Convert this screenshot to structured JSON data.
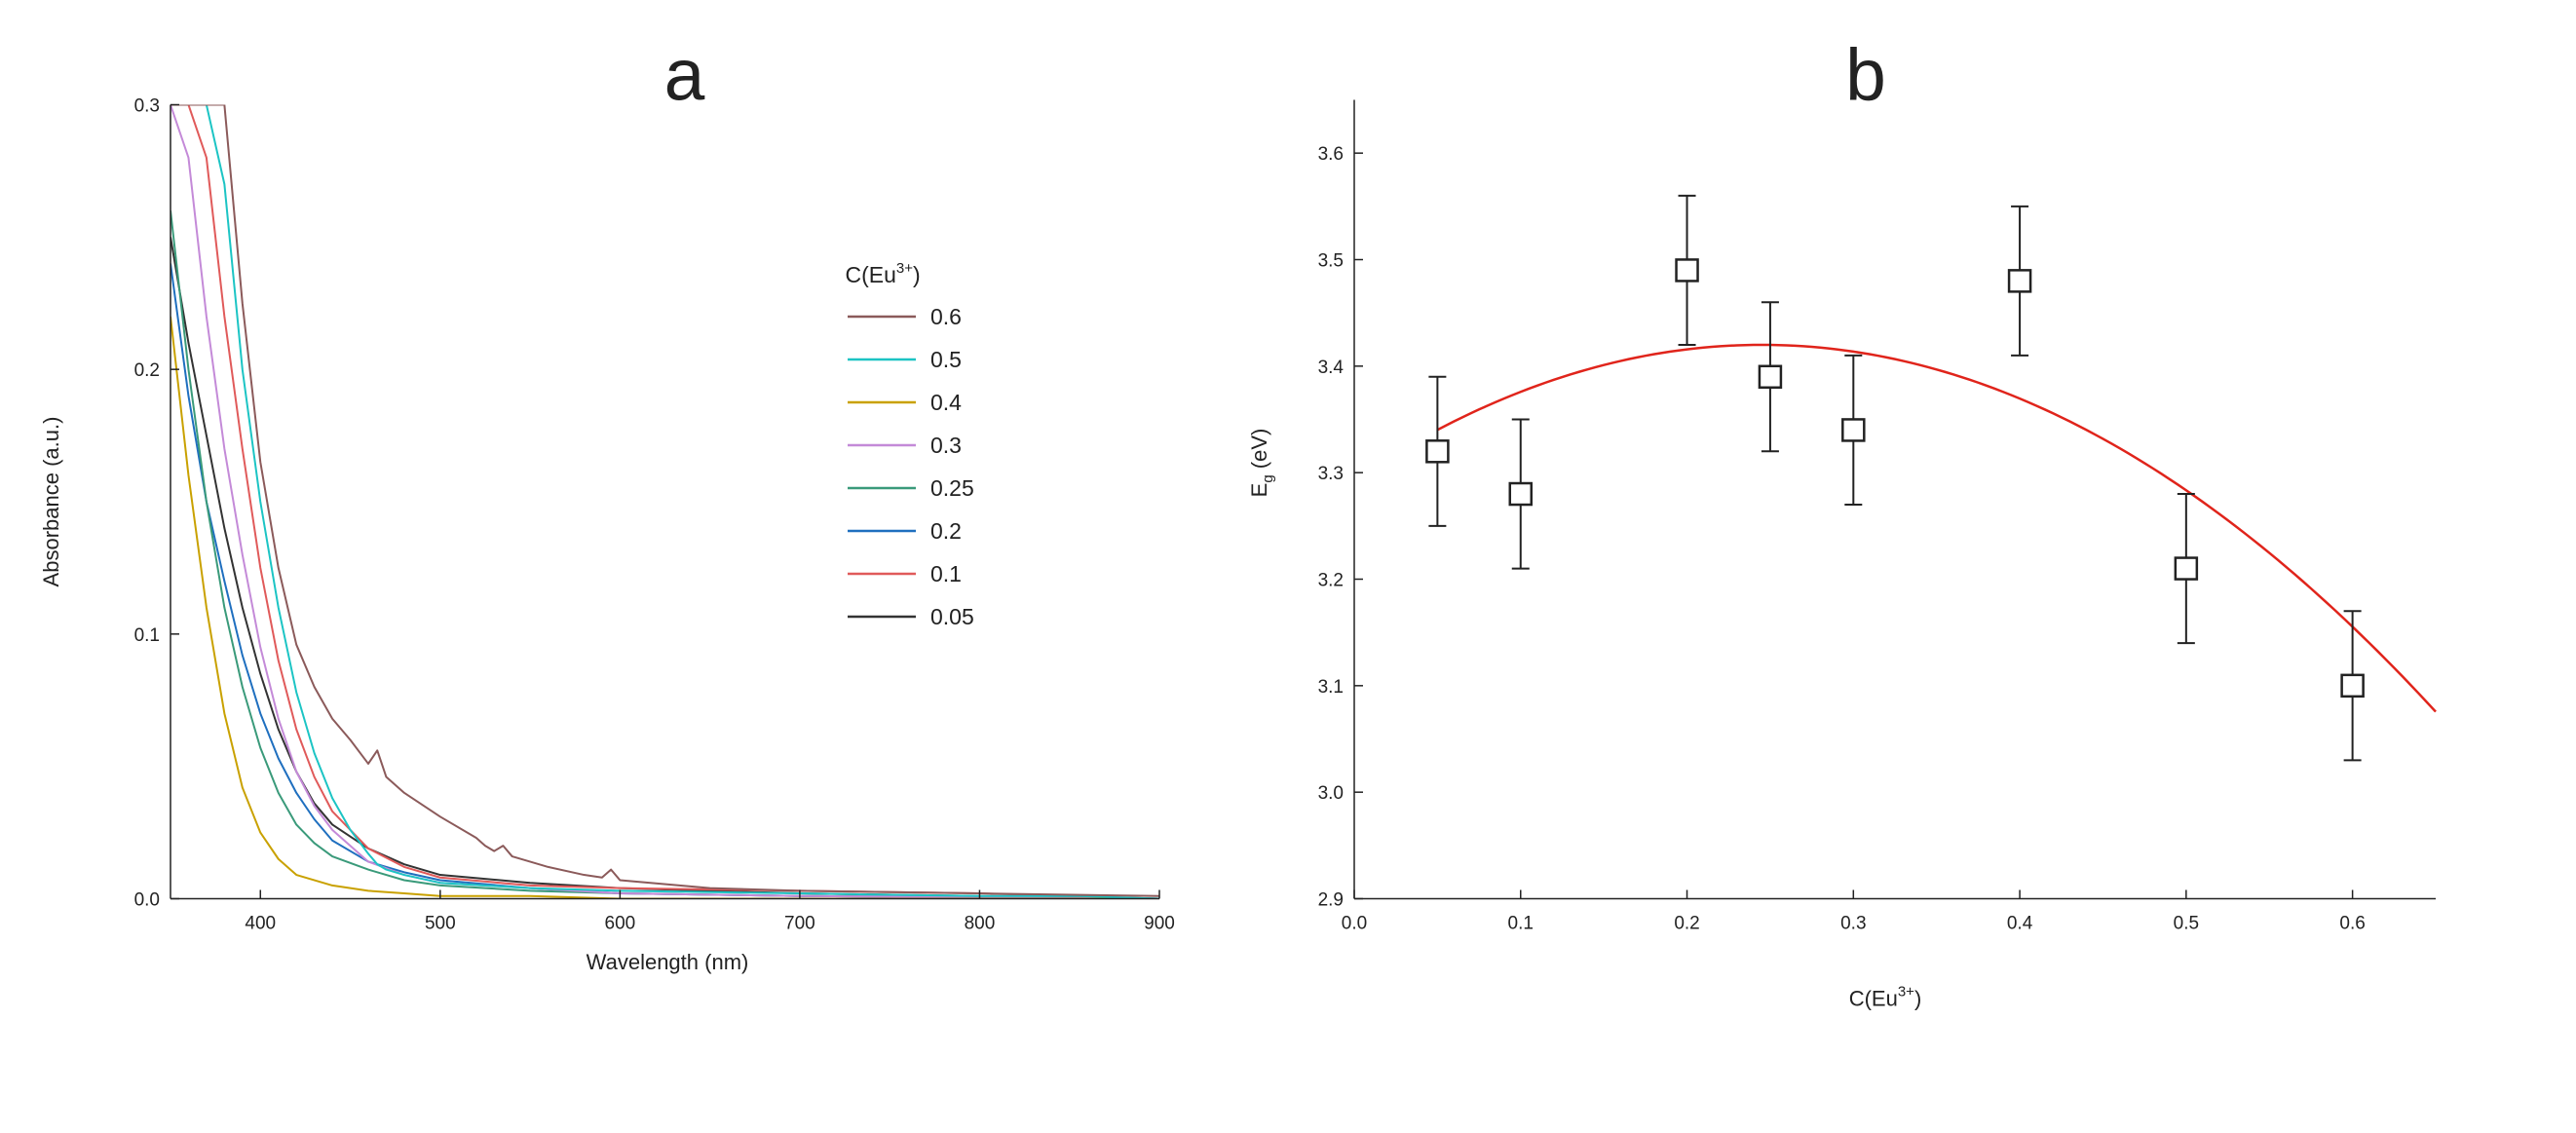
{
  "chart_data": [
    {
      "type": "line",
      "panel": "a",
      "xlabel": "Wavelength (nm)",
      "ylabel": "Absorbance (a.u.)",
      "xlim": [
        350,
        900
      ],
      "ylim": [
        0,
        0.3
      ],
      "xticks": [
        "400",
        "500",
        "600",
        "700",
        "800",
        "900"
      ],
      "yticks": [
        "0.0",
        "0.1",
        "0.2",
        "0.3"
      ],
      "legend_title_base": "C(Eu",
      "legend_title_sup": "3+",
      "legend_title_end": ")",
      "series": [
        {
          "name": "0.6",
          "color": "#8b5a5a",
          "x": [
            350,
            370,
            380,
            390,
            400,
            410,
            420,
            430,
            440,
            450,
            460,
            465,
            470,
            480,
            500,
            520,
            525,
            530,
            535,
            540,
            560,
            580,
            590,
            595,
            600,
            650,
            700,
            800,
            900
          ],
          "y": [
            0.3,
            0.3,
            0.3,
            0.225,
            0.165,
            0.125,
            0.096,
            0.08,
            0.068,
            0.06,
            0.051,
            0.056,
            0.046,
            0.04,
            0.031,
            0.023,
            0.02,
            0.018,
            0.02,
            0.016,
            0.012,
            0.009,
            0.008,
            0.011,
            0.007,
            0.004,
            0.003,
            0.002,
            0.001
          ]
        },
        {
          "name": "0.5",
          "color": "#1cc4c4",
          "x": [
            350,
            360,
            370,
            380,
            390,
            400,
            410,
            420,
            430,
            440,
            450,
            460,
            465,
            470,
            480,
            500,
            550,
            600,
            700,
            800,
            855,
            900
          ],
          "y": [
            0.3,
            0.3,
            0.3,
            0.27,
            0.2,
            0.15,
            0.11,
            0.078,
            0.055,
            0.038,
            0.026,
            0.017,
            0.013,
            0.011,
            0.009,
            0.006,
            0.004,
            0.003,
            0.002,
            0.001,
            0.001,
            0.0
          ]
        },
        {
          "name": "0.4",
          "color": "#c9a100",
          "x": [
            350,
            360,
            370,
            380,
            390,
            400,
            410,
            420,
            440,
            460,
            480,
            500,
            550,
            600,
            700,
            900
          ],
          "y": [
            0.22,
            0.16,
            0.11,
            0.07,
            0.042,
            0.025,
            0.015,
            0.009,
            0.005,
            0.003,
            0.002,
            0.001,
            0.001,
            0.0,
            0.0,
            0.0
          ]
        },
        {
          "name": "0.3",
          "color": "#c48ad8",
          "x": [
            350,
            360,
            370,
            380,
            390,
            400,
            410,
            420,
            430,
            440,
            460,
            480,
            500,
            550,
            600,
            700,
            900
          ],
          "y": [
            0.3,
            0.28,
            0.22,
            0.17,
            0.13,
            0.095,
            0.068,
            0.048,
            0.035,
            0.026,
            0.014,
            0.009,
            0.006,
            0.004,
            0.002,
            0.001,
            0.0
          ]
        },
        {
          "name": "0.25",
          "color": "#3a9a7a",
          "x": [
            350,
            360,
            370,
            380,
            390,
            400,
            410,
            420,
            430,
            440,
            460,
            480,
            500,
            550,
            600,
            700,
            900
          ],
          "y": [
            0.26,
            0.2,
            0.15,
            0.11,
            0.08,
            0.057,
            0.04,
            0.028,
            0.021,
            0.016,
            0.011,
            0.007,
            0.005,
            0.003,
            0.002,
            0.001,
            0.0
          ]
        },
        {
          "name": "0.2",
          "color": "#1f6fbf",
          "x": [
            350,
            360,
            370,
            380,
            390,
            400,
            410,
            420,
            430,
            440,
            460,
            480,
            500,
            550,
            600,
            700,
            900
          ],
          "y": [
            0.24,
            0.19,
            0.15,
            0.12,
            0.092,
            0.07,
            0.053,
            0.04,
            0.03,
            0.022,
            0.014,
            0.01,
            0.007,
            0.004,
            0.002,
            0.001,
            0.0
          ]
        },
        {
          "name": "0.1",
          "color": "#e05a5a",
          "x": [
            350,
            360,
            370,
            380,
            390,
            400,
            410,
            420,
            430,
            440,
            460,
            480,
            500,
            550,
            600,
            700,
            800,
            900
          ],
          "y": [
            0.3,
            0.3,
            0.28,
            0.22,
            0.17,
            0.125,
            0.09,
            0.064,
            0.046,
            0.033,
            0.019,
            0.012,
            0.008,
            0.005,
            0.004,
            0.003,
            0.002,
            0.0
          ]
        },
        {
          "name": "0.05",
          "color": "#333333",
          "x": [
            350,
            360,
            370,
            380,
            390,
            400,
            410,
            420,
            430,
            440,
            460,
            480,
            500,
            550,
            600,
            700,
            900
          ],
          "y": [
            0.25,
            0.21,
            0.175,
            0.14,
            0.11,
            0.085,
            0.064,
            0.048,
            0.036,
            0.028,
            0.019,
            0.013,
            0.009,
            0.006,
            0.004,
            0.002,
            0.0
          ]
        }
      ]
    },
    {
      "type": "scatter",
      "panel": "b",
      "xlabel_base": "C(Eu",
      "xlabel_sup": "3+",
      "xlabel_end": ")",
      "ylabel_main": "E",
      "ylabel_sub": "g",
      "ylabel_end": " (eV)",
      "xlim": [
        0.0,
        0.65
      ],
      "ylim": [
        2.9,
        3.65
      ],
      "xticks": [
        "0.0",
        "0.1",
        "0.2",
        "0.3",
        "0.4",
        "0.5",
        "0.6"
      ],
      "yticks": [
        "2.9",
        "3.0",
        "3.1",
        "3.2",
        "3.3",
        "3.4",
        "3.5",
        "3.6"
      ],
      "points": [
        {
          "x": 0.05,
          "y": 3.32,
          "err": 0.07
        },
        {
          "x": 0.1,
          "y": 3.28,
          "err": 0.07
        },
        {
          "x": 0.2,
          "y": 3.49,
          "err": 0.07
        },
        {
          "x": 0.25,
          "y": 3.39,
          "err": 0.07
        },
        {
          "x": 0.3,
          "y": 3.34,
          "err": 0.07
        },
        {
          "x": 0.4,
          "y": 3.48,
          "err": 0.07
        },
        {
          "x": 0.5,
          "y": 3.21,
          "err": 0.07
        },
        {
          "x": 0.6,
          "y": 3.1,
          "err": 0.07
        }
      ],
      "fit": {
        "type": "quadratic",
        "vertex_x": 0.245,
        "vertex_y": 3.42,
        "curvature": -2.1,
        "x_range": [
          0.05,
          0.65
        ],
        "color": "#e0241b"
      }
    }
  ],
  "panels": {
    "a_label": "a",
    "b_label": "b"
  }
}
